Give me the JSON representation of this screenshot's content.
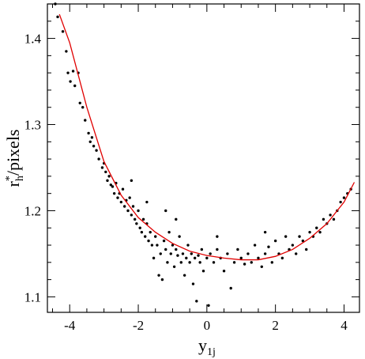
{
  "chart_data": {
    "type": "scatter",
    "xlabel": {
      "base": "y",
      "sub": "1j"
    },
    "ylabel": {
      "base": "r",
      "sup": "*",
      "sub": "h",
      "rest": "/pixels"
    },
    "xlim": [
      -4.65,
      4.45
    ],
    "ylim": [
      1.082,
      1.44
    ],
    "xticks": [
      -4,
      -2,
      0,
      2,
      4
    ],
    "yticks": [
      1.1,
      1.2,
      1.3,
      1.4
    ],
    "xminorticks": [
      -4.5,
      -3.5,
      -3,
      -2.5,
      -1.5,
      -1,
      -0.5,
      0.5,
      1,
      1.5,
      2.5,
      3,
      3.5
    ],
    "yminorticks": [
      1.12,
      1.14,
      1.16,
      1.18,
      1.22,
      1.24,
      1.26,
      1.28,
      1.32,
      1.34,
      1.36,
      1.38,
      1.42
    ],
    "series": [
      {
        "color": "#000000",
        "marker": "dot",
        "x": [
          -4.42,
          -4.35,
          -4.2,
          -4.1,
          -4.05,
          -3.98,
          -3.9,
          -3.85,
          -3.75,
          -3.7,
          -3.62,
          -3.55,
          -3.45,
          -3.4,
          -3.35,
          -3.3,
          -3.22,
          -3.15,
          -3.05,
          -3.0,
          -2.95,
          -2.9,
          -2.85,
          -2.8,
          -2.75,
          -2.7,
          -2.65,
          -2.6,
          -2.55,
          -2.5,
          -2.45,
          -2.4,
          -2.35,
          -2.3,
          -2.25,
          -2.2,
          -2.15,
          -2.1,
          -2.05,
          -2.0,
          -1.95,
          -1.9,
          -1.85,
          -1.8,
          -1.75,
          -1.7,
          -1.65,
          -1.6,
          -1.55,
          -1.5,
          -1.45,
          -1.4,
          -1.35,
          -1.3,
          -1.25,
          -1.2,
          -1.15,
          -1.1,
          -1.05,
          -1.0,
          -0.95,
          -0.9,
          -0.85,
          -0.8,
          -0.75,
          -0.7,
          -0.65,
          -0.6,
          -0.55,
          -0.5,
          -0.45,
          -0.4,
          -0.35,
          -0.3,
          -0.25,
          -0.2,
          -0.15,
          -0.1,
          0.0,
          0.05,
          0.1,
          0.2,
          0.3,
          0.4,
          0.5,
          0.6,
          0.7,
          0.8,
          0.9,
          1.0,
          1.1,
          1.2,
          1.3,
          1.4,
          1.5,
          1.6,
          1.7,
          1.8,
          1.9,
          2.0,
          2.1,
          2.2,
          2.3,
          2.4,
          2.5,
          2.6,
          2.7,
          2.8,
          2.9,
          3.0,
          3.1,
          3.2,
          3.3,
          3.4,
          3.5,
          3.6,
          3.7,
          3.8,
          3.9,
          4.0,
          4.1,
          4.2,
          -1.75,
          -2.2,
          -1.2,
          -0.9,
          0.3,
          1.7
        ],
        "values": [
          1.44,
          1.425,
          1.408,
          1.385,
          1.36,
          1.35,
          1.362,
          1.345,
          1.36,
          1.325,
          1.32,
          1.305,
          1.29,
          1.28,
          1.285,
          1.275,
          1.27,
          1.26,
          1.25,
          1.255,
          1.245,
          1.235,
          1.24,
          1.23,
          1.228,
          1.22,
          1.232,
          1.215,
          1.22,
          1.21,
          1.225,
          1.205,
          1.212,
          1.2,
          1.215,
          1.195,
          1.205,
          1.19,
          1.185,
          1.2,
          1.18,
          1.175,
          1.19,
          1.17,
          1.185,
          1.165,
          1.175,
          1.16,
          1.145,
          1.17,
          1.16,
          1.125,
          1.15,
          1.12,
          1.165,
          1.155,
          1.14,
          1.175,
          1.15,
          1.16,
          1.135,
          1.155,
          1.148,
          1.17,
          1.14,
          1.15,
          1.125,
          1.145,
          1.16,
          1.14,
          1.15,
          1.115,
          1.145,
          1.095,
          1.148,
          1.14,
          1.155,
          1.13,
          1.145,
          1.09,
          1.15,
          1.14,
          1.155,
          1.145,
          1.13,
          1.15,
          1.11,
          1.14,
          1.155,
          1.145,
          1.138,
          1.15,
          1.14,
          1.16,
          1.145,
          1.135,
          1.15,
          1.158,
          1.14,
          1.165,
          1.15,
          1.145,
          1.17,
          1.155,
          1.16,
          1.15,
          1.17,
          1.165,
          1.155,
          1.175,
          1.17,
          1.18,
          1.175,
          1.19,
          1.185,
          1.195,
          1.19,
          1.2,
          1.21,
          1.215,
          1.22,
          1.225,
          1.21,
          1.235,
          1.2,
          1.19,
          1.17,
          1.175
        ]
      },
      {
        "color": "#e00000",
        "marker": "line",
        "x": [
          -4.3,
          -4,
          -3.5,
          -3,
          -2.5,
          -2,
          -1.5,
          -1,
          -0.5,
          0,
          0.5,
          1,
          1.5,
          2,
          2.5,
          3,
          3.5,
          4,
          4.3
        ],
        "values": [
          1.428,
          1.395,
          1.32,
          1.257,
          1.218,
          1.192,
          1.175,
          1.162,
          1.153,
          1.148,
          1.145,
          1.143,
          1.143,
          1.147,
          1.155,
          1.168,
          1.185,
          1.21,
          1.233
        ]
      }
    ]
  }
}
